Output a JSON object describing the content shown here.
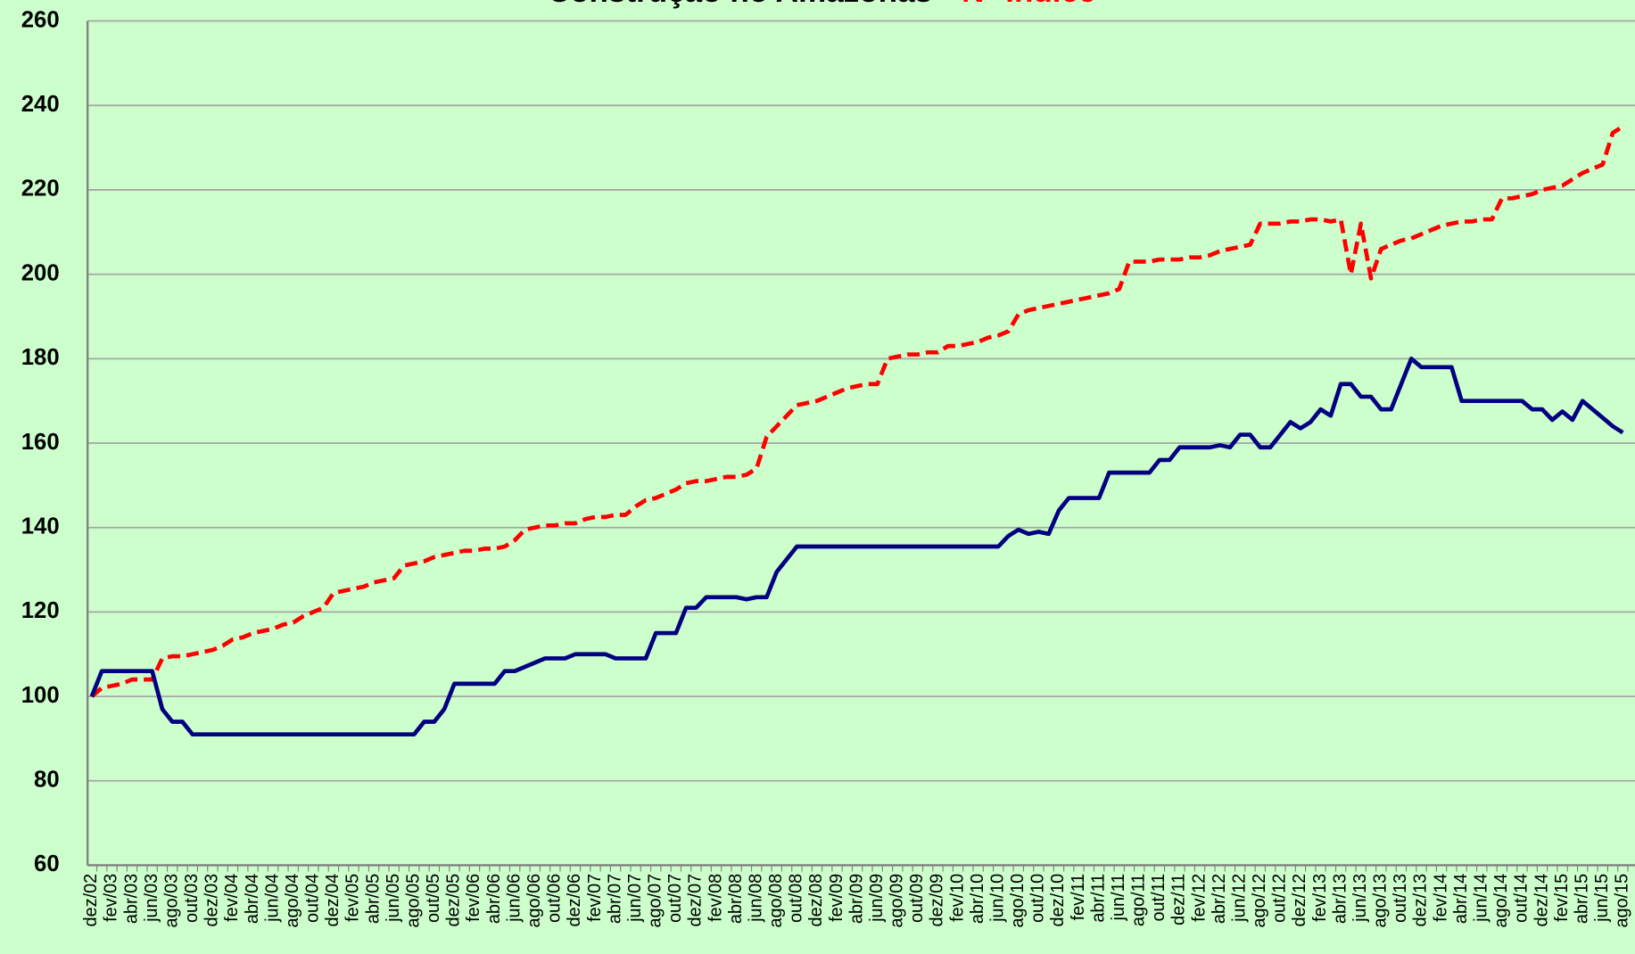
{
  "chart_data": {
    "type": "line",
    "title": [
      "Construção no Amazonas -",
      "N° Índice"
    ],
    "title_colors": [
      "#000000",
      "#ff0000"
    ],
    "background": "#ccffcc",
    "grid": true,
    "ylim": [
      60,
      260
    ],
    "yticks": [
      60,
      80,
      100,
      120,
      140,
      160,
      180,
      200,
      220,
      240,
      260
    ],
    "categories": [
      "dez/02",
      null,
      "fev/03",
      null,
      "abr/03",
      null,
      "jun/03",
      null,
      "ago/03",
      null,
      "out/03",
      null,
      "dez/03",
      null,
      "fev/04",
      null,
      "abr/04",
      null,
      "jun/04",
      null,
      "ago/04",
      null,
      "out/04",
      null,
      "dez/04",
      null,
      "fev/05",
      null,
      "abr/05",
      null,
      "jun/05",
      null,
      "ago/05",
      null,
      "out/05",
      null,
      "dez/05",
      null,
      "fev/06",
      null,
      "abr/06",
      null,
      "jun/06",
      null,
      "ago/06",
      null,
      "out/06",
      null,
      "dez/06",
      null,
      "fev/07",
      null,
      "abr/07",
      null,
      "jun/07",
      null,
      "ago/07",
      null,
      "out/07",
      null,
      "dez/07",
      null,
      "fev/08",
      null,
      "abr/08",
      null,
      "jun/08",
      null,
      "ago/08",
      null,
      "out/08",
      null,
      "dez/08",
      null,
      "fev/09",
      null,
      "abr/09",
      null,
      "jun/09",
      null,
      "ago/09",
      null,
      "out/09",
      null,
      "dez/09",
      null,
      "fev/10",
      null,
      "abr/10",
      null,
      "jun/10",
      null,
      "ago/10",
      null,
      "out/10",
      null,
      "dez/10",
      null,
      "fev/11",
      null,
      "abr/11",
      null,
      "jun/11",
      null,
      "ago/11",
      null,
      "out/11",
      null,
      "dez/11",
      null,
      "fev/12",
      null,
      "abr/12",
      null,
      "jun/12",
      null,
      "ago/12",
      null,
      "out/12",
      null,
      "dez/12",
      null,
      "fev/13",
      null,
      "abr/13",
      null,
      "jun/13",
      null,
      "ago/13",
      null,
      "out/13",
      null,
      "dez/13",
      null,
      "fev/14",
      null,
      "abr/14",
      null,
      "jun/14",
      null,
      "ago/14",
      null,
      "out/14",
      null,
      "dez/14",
      null,
      "fev/15",
      null,
      "abr/15",
      null,
      "jun/15",
      null,
      "ago/15"
    ],
    "series": [
      {
        "color": "#ff0000",
        "dashed": true,
        "values": [
          100,
          102,
          102.5,
          103,
          104,
          104,
          104,
          109,
          109.5,
          109.5,
          110,
          110.5,
          111,
          112,
          113.5,
          114,
          115,
          115.5,
          116,
          117,
          117.5,
          119,
          120,
          121,
          124.5,
          125,
          125.5,
          126,
          127,
          127.5,
          128,
          131,
          131.5,
          132,
          133,
          133.5,
          134,
          134.5,
          134.5,
          135,
          135,
          135.5,
          137,
          139.5,
          140,
          140.5,
          140.5,
          141,
          141,
          142,
          142.5,
          142.5,
          143,
          143,
          145,
          146.5,
          147,
          148,
          149,
          150.5,
          151,
          151,
          151.5,
          152,
          152,
          152.5,
          154,
          161.5,
          164,
          166.5,
          169,
          169.5,
          170,
          171,
          172,
          173,
          173.5,
          174,
          174,
          180,
          180.5,
          181,
          181,
          181.5,
          181.5,
          183,
          183,
          183.5,
          184,
          185,
          185.5,
          186.5,
          190.5,
          191.5,
          192,
          192.5,
          193,
          193.5,
          194,
          194.5,
          195,
          195.5,
          196.5,
          203,
          203,
          203,
          203.5,
          203.5,
          203.5,
          204,
          204,
          204.5,
          205.5,
          206,
          206.5,
          207,
          212,
          212,
          212,
          212.5,
          212.5,
          213,
          213,
          212.5,
          213,
          200,
          212,
          199,
          206,
          207,
          208,
          208.5,
          209.5,
          210.5,
          211.5,
          212,
          212.5,
          212.5,
          213,
          213,
          218,
          218,
          218.5,
          219,
          220,
          220.5,
          221,
          222.5,
          224,
          225,
          226,
          233.5,
          235
        ]
      },
      {
        "color": "#000080",
        "dashed": false,
        "values": [
          100,
          106,
          106,
          106,
          106,
          106,
          106,
          97,
          94,
          94,
          91,
          91,
          91,
          91,
          91,
          91,
          91,
          91,
          91,
          91,
          91,
          91,
          91,
          91,
          91,
          91,
          91,
          91,
          91,
          91,
          91,
          91,
          91,
          94,
          94,
          97,
          103,
          103,
          103,
          103,
          103,
          106,
          106,
          107,
          108,
          109,
          109,
          109,
          110,
          110,
          110,
          110,
          109,
          109,
          109,
          109,
          115,
          115,
          115,
          121,
          121,
          123.5,
          123.5,
          123.5,
          123.5,
          123,
          123.5,
          123.5,
          129.5,
          132.5,
          135.5,
          135.5,
          135.5,
          135.5,
          135.5,
          135.5,
          135.5,
          135.5,
          135.5,
          135.5,
          135.5,
          135.5,
          135.5,
          135.5,
          135.5,
          135.5,
          135.5,
          135.5,
          135.5,
          135.5,
          135.5,
          138,
          139.5,
          138.5,
          139,
          138.5,
          144,
          147,
          147,
          147,
          147,
          153,
          153,
          153,
          153,
          153,
          156,
          156,
          159,
          159,
          159,
          159,
          159.5,
          159,
          162,
          162,
          159,
          159,
          162,
          165,
          163.5,
          165,
          168,
          166.5,
          174,
          174,
          171,
          171,
          168,
          168,
          174,
          180,
          178,
          178,
          178,
          178,
          170,
          170,
          170,
          170,
          170,
          170,
          170,
          168,
          168,
          165.5,
          167.5,
          165.5,
          170,
          168,
          166,
          164,
          162.5
        ]
      }
    ]
  }
}
